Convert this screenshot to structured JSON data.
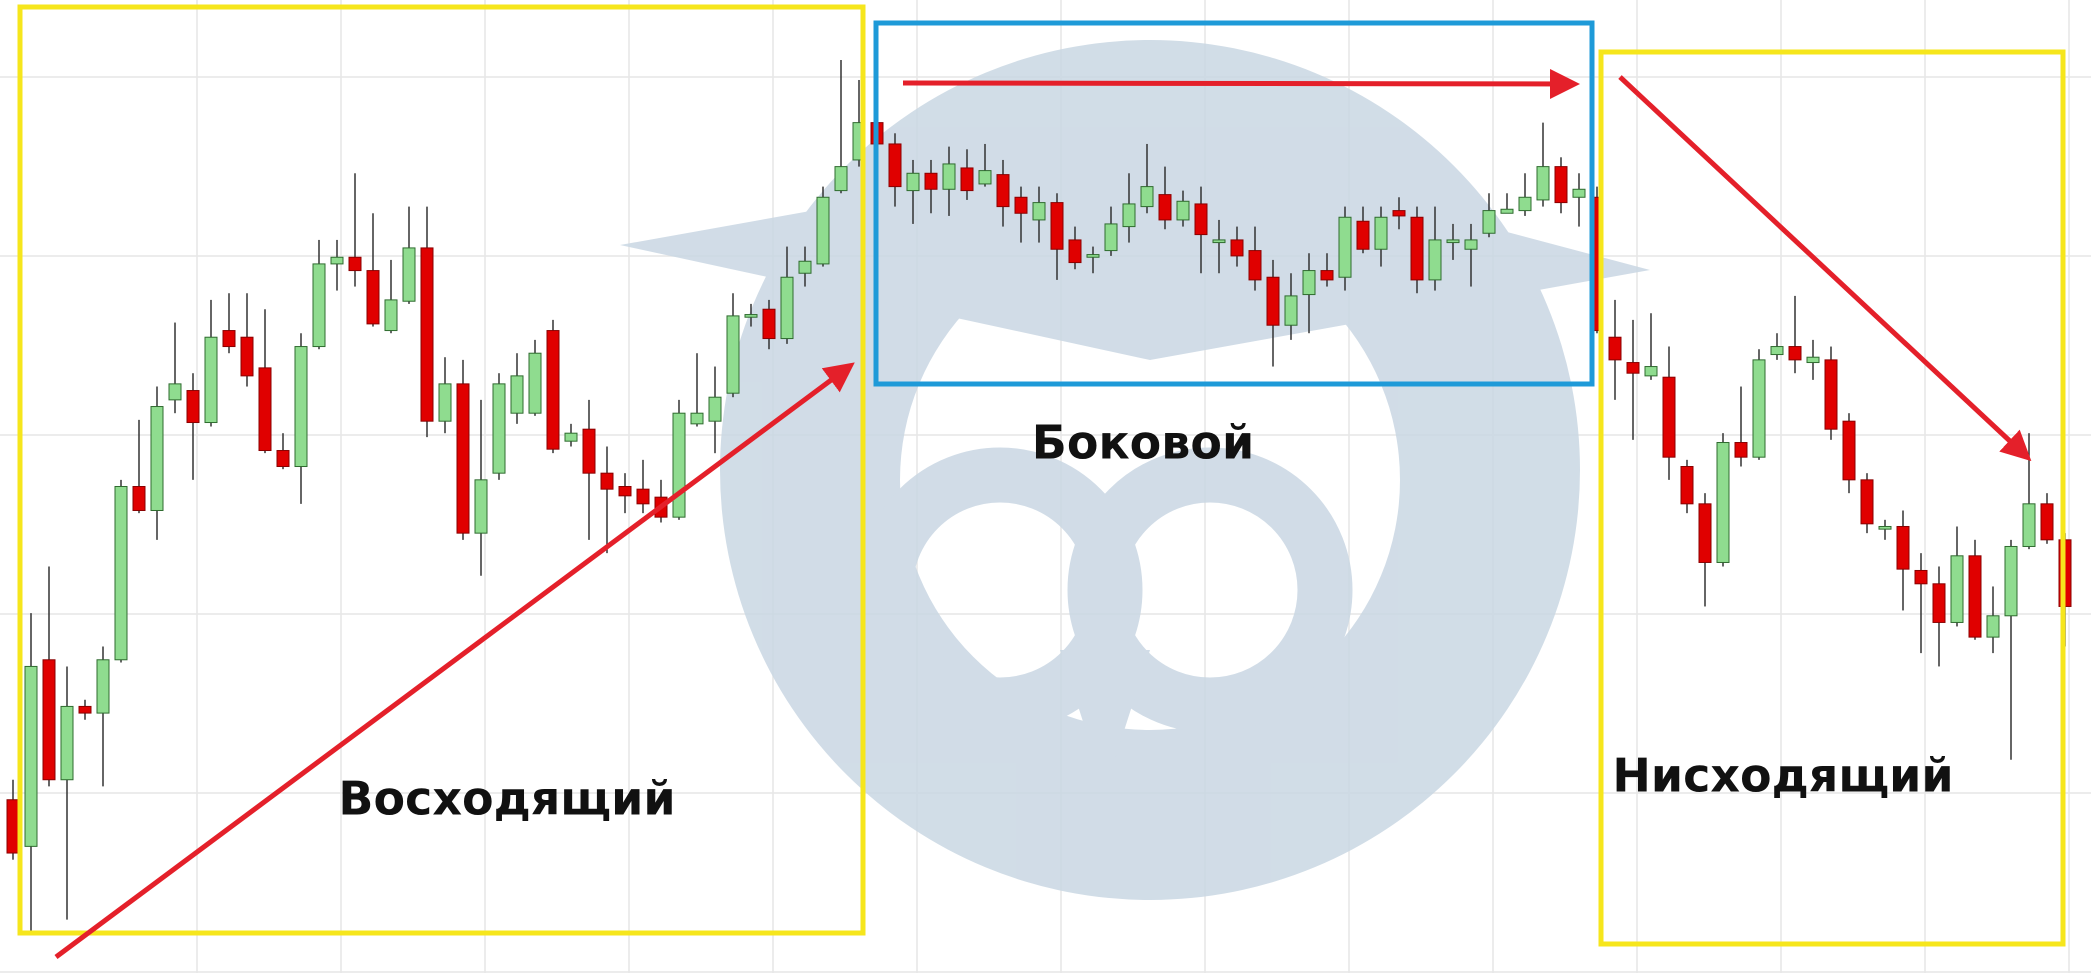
{
  "chart_data": {
    "type": "candlestick",
    "open": [
      130,
      95,
      235,
      145,
      200,
      195,
      235,
      365,
      347,
      430,
      437,
      413,
      482,
      477,
      454,
      392,
      380,
      470,
      532,
      537,
      527,
      482,
      504,
      544,
      414,
      442,
      330,
      375,
      420,
      420,
      482,
      399,
      408,
      375,
      365,
      363,
      357,
      342,
      412,
      414,
      435,
      492,
      498,
      476,
      525,
      532,
      587,
      610,
      638,
      622,
      587,
      600,
      588,
      604,
      592,
      599,
      582,
      565,
      578,
      550,
      537,
      542,
      560,
      575,
      584,
      565,
      577,
      548,
      550,
      542,
      522,
      486,
      509,
      527,
      522,
      564,
      543,
      572,
      567,
      520,
      548,
      543,
      555,
      570,
      572,
      580,
      605,
      582,
      582,
      477,
      458,
      448,
      447,
      380,
      352,
      308,
      398,
      387,
      464,
      470,
      458,
      460,
      414,
      370,
      333,
      335,
      302,
      292,
      263,
      313,
      252,
      268,
      320,
      352,
      325
    ],
    "high": [
      145,
      270,
      305,
      230,
      205,
      245,
      370,
      415,
      440,
      488,
      450,
      505,
      510,
      510,
      498,
      405,
      480,
      550,
      550,
      600,
      570,
      535,
      575,
      575,
      462,
      460,
      430,
      450,
      465,
      475,
      490,
      412,
      430,
      395,
      375,
      385,
      370,
      430,
      465,
      455,
      510,
      502,
      505,
      545,
      545,
      590,
      685,
      670,
      644,
      630,
      610,
      610,
      620,
      618,
      622,
      610,
      590,
      590,
      585,
      560,
      545,
      575,
      600,
      622,
      605,
      587,
      590,
      565,
      560,
      560,
      535,
      525,
      540,
      540,
      575,
      575,
      575,
      582,
      575,
      575,
      562,
      562,
      585,
      585,
      600,
      638,
      612,
      600,
      590,
      505,
      490,
      495,
      470,
      385,
      360,
      405,
      440,
      468,
      480,
      508,
      475,
      470,
      420,
      375,
      340,
      347,
      315,
      305,
      335,
      325,
      290,
      325,
      405,
      360,
      330
    ],
    "low": [
      85,
      30,
      140,
      40,
      190,
      140,
      233,
      345,
      325,
      420,
      370,
      410,
      465,
      440,
      390,
      378,
      352,
      468,
      512,
      515,
      485,
      480,
      502,
      402,
      405,
      325,
      298,
      370,
      412,
      418,
      390,
      395,
      325,
      315,
      345,
      345,
      338,
      340,
      410,
      390,
      432,
      485,
      468,
      472,
      515,
      530,
      585,
      605,
      612,
      575,
      562,
      570,
      568,
      580,
      590,
      560,
      548,
      548,
      520,
      528,
      525,
      538,
      548,
      570,
      558,
      560,
      525,
      525,
      530,
      512,
      455,
      475,
      480,
      515,
      512,
      540,
      530,
      558,
      510,
      512,
      535,
      515,
      552,
      570,
      568,
      575,
      570,
      560,
      480,
      430,
      400,
      445,
      370,
      345,
      275,
      305,
      380,
      385,
      460,
      450,
      445,
      400,
      360,
      330,
      325,
      272,
      240,
      230,
      260,
      250,
      240,
      160,
      318,
      322,
      245
    ],
    "close": [
      90,
      230,
      145,
      200,
      195,
      235,
      365,
      347,
      425,
      442,
      413,
      477,
      470,
      448,
      392,
      380,
      470,
      532,
      537,
      527,
      487,
      505,
      544,
      414,
      442,
      330,
      370,
      442,
      448,
      465,
      393,
      405,
      375,
      363,
      358,
      352,
      342,
      420,
      420,
      432,
      493,
      494,
      476,
      522,
      534,
      582,
      605,
      638,
      622,
      590,
      600,
      588,
      607,
      587,
      602,
      575,
      570,
      578,
      543,
      533,
      539,
      562,
      577,
      590,
      565,
      579,
      554,
      550,
      538,
      520,
      486,
      508,
      527,
      520,
      567,
      543,
      567,
      568,
      520,
      550,
      550,
      550,
      572,
      573,
      582,
      605,
      578,
      588,
      482,
      460,
      450,
      455,
      387,
      352,
      308,
      398,
      387,
      460,
      470,
      460,
      462,
      408,
      370,
      337,
      335,
      303,
      292,
      263,
      313,
      252,
      268,
      320,
      352,
      325,
      275
    ],
    "up_color": "#8fdc8f",
    "down_color": "#e00000",
    "ylim": [
      0,
      730
    ],
    "annotations": [
      "Восходящий",
      "Боковой",
      "Нисходящий"
    ]
  }
}
